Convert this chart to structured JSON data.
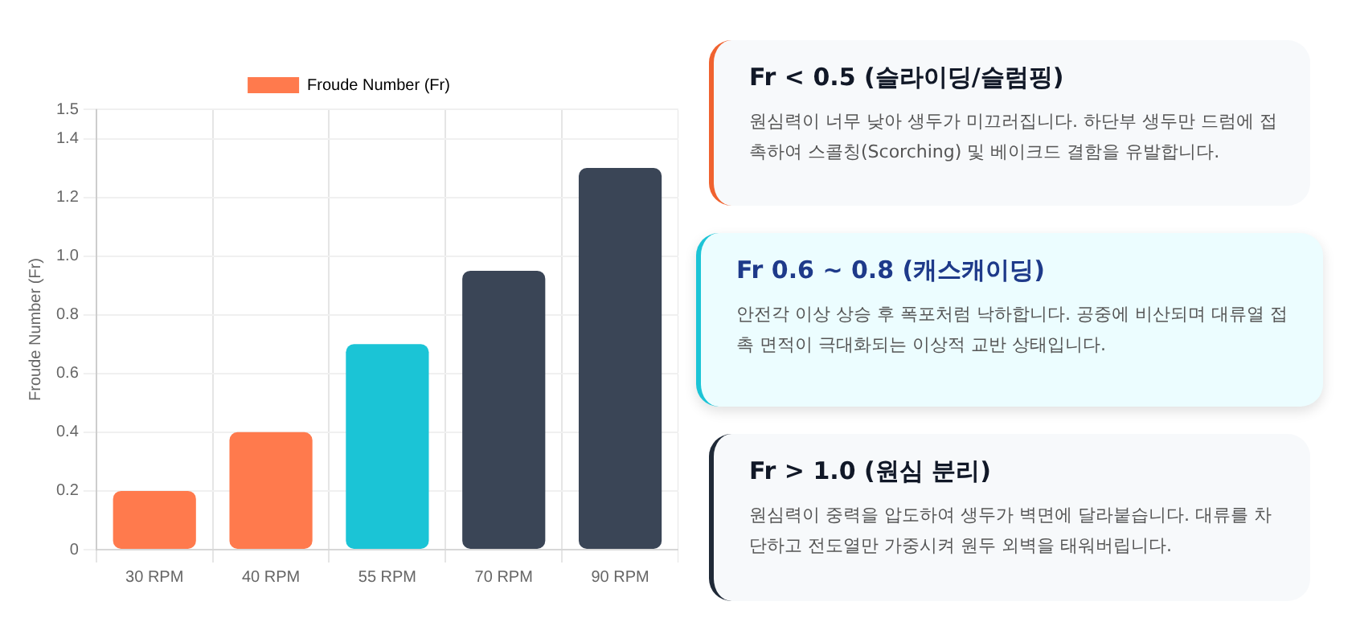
{
  "chart_data": [
    {
      "type": "bar",
      "ylabel": "Froude Number (Fr)",
      "categories": [
        "30 RPM",
        "40 RPM",
        "55 RPM",
        "70 RPM",
        "90 RPM"
      ],
      "series": [
        {
          "name": "Froude Number (Fr)",
          "colors": [
            "#ff7a4d",
            "#ff7a4d",
            "#1bc4d6",
            "#3a4556",
            "#3a4556"
          ],
          "values": [
            0.2,
            0.4,
            0.7,
            0.95,
            1.3
          ]
        }
      ],
      "ylim": [
        0,
        1.5
      ],
      "yticks": [
        0,
        0.2,
        0.4,
        0.6,
        0.8,
        {
          "value": 1,
          "label": "1.0"
        },
        1.2,
        1.4,
        1.5
      ],
      "grid": true,
      "legend": "top"
    },
    {
      "type": "other",
      "title": "Fr < 0.5 (슬라이딩/슬럼핑)",
      "annotations": [
        "원심력이 너무 낮아 생두가 미끄러집니다. 하단부 생두만 드럼에 접촉하여 스콜칭(Scorching) 및 베이크드 결함을 유발합니다."
      ]
    },
    {
      "type": "other",
      "title": "Fr 0.6 ~ 0.8 (캐스캐이딩)",
      "annotations": [
        "안전각 이상 상승 후 폭포처럼 낙하합니다. 공중에 비산되며 대류열 접촉 면적이 극대화되는 이상적 교반 상태입니다."
      ]
    },
    {
      "type": "other",
      "title": "Fr > 1.0 (원심 분리)",
      "annotations": [
        "원심력이 중력을 압도하여 생두가 벽면에 달라붙습니다. 대류를 차단하고 전도열만 가중시켜 원두 외벽을 태워버립니다."
      ]
    }
  ]
}
